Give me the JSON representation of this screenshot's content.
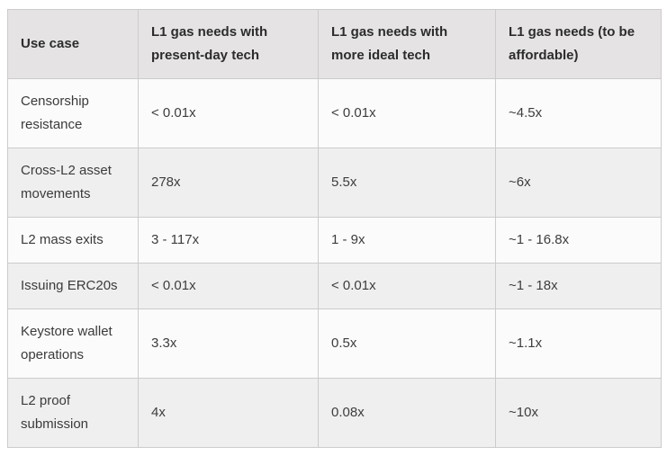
{
  "table": {
    "headers": [
      "Use case",
      "L1 gas needs with present-day tech",
      "L1 gas needs with more ideal tech",
      "L1 gas needs (to be affordable)"
    ],
    "rows": [
      [
        "Censorship resistance",
        "< 0.01x",
        "< 0.01x",
        "~4.5x"
      ],
      [
        "Cross-L2 asset movements",
        "278x",
        "5.5x",
        "~6x"
      ],
      [
        "L2 mass exits",
        "3 - 117x",
        "1 - 9x",
        "~1 - 16.8x"
      ],
      [
        "Issuing ERC20s",
        "< 0.01x",
        "< 0.01x",
        "~1 - 18x"
      ],
      [
        "Keystore wallet operations",
        "3.3x",
        "0.5x",
        "~1.1x"
      ],
      [
        "L2 proof submission",
        "4x",
        "0.08x",
        "~10x"
      ]
    ]
  },
  "colors": {
    "header_bg": "#e5e3e3",
    "row_odd_bg": "#fbfbfb",
    "row_even_bg": "#efefef",
    "border": "#cccccc",
    "text": "#3d3d3d",
    "header_text": "#2c2c2c"
  }
}
